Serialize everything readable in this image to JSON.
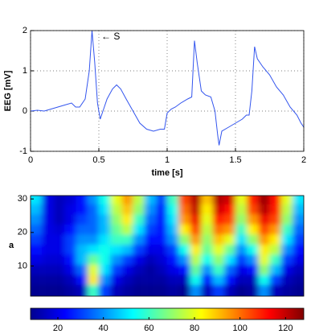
{
  "chart_data": [
    {
      "type": "line",
      "ylabel": "EEG [mV]",
      "xlabel": "time [s]",
      "annotation": "← S",
      "color": "#3355ee",
      "x": [
        0,
        0.05,
        0.1,
        0.15,
        0.2,
        0.25,
        0.3,
        0.33,
        0.36,
        0.4,
        0.43,
        0.45,
        0.47,
        0.49,
        0.51,
        0.53,
        0.56,
        0.6,
        0.63,
        0.66,
        0.7,
        0.75,
        0.8,
        0.85,
        0.9,
        0.95,
        0.98,
        1.0,
        1.03,
        1.06,
        1.1,
        1.15,
        1.18,
        1.2,
        1.22,
        1.25,
        1.28,
        1.32,
        1.35,
        1.37,
        1.38,
        1.4,
        1.45,
        1.5,
        1.55,
        1.58,
        1.6,
        1.62,
        1.64,
        1.66,
        1.7,
        1.75,
        1.8,
        1.85,
        1.9,
        1.95,
        1.98,
        2.0
      ],
      "values": [
        0,
        0.02,
        0,
        0.05,
        0.1,
        0.15,
        0.2,
        0.1,
        0.1,
        0.3,
        1.0,
        2.0,
        1.2,
        0.2,
        -0.2,
        0,
        0.3,
        0.55,
        0.65,
        0.55,
        0.3,
        0,
        -0.3,
        -0.45,
        -0.5,
        -0.45,
        -0.45,
        -0.05,
        0.05,
        0.1,
        0.2,
        0.3,
        0.35,
        1.75,
        1.2,
        0.5,
        0.4,
        0.35,
        0,
        -0.6,
        -0.85,
        -0.5,
        -0.4,
        -0.3,
        -0.2,
        -0.1,
        -0.1,
        0.5,
        1.6,
        1.3,
        1.1,
        0.9,
        0.6,
        0.4,
        0.1,
        -0.1,
        -0.3,
        -0.4
      ],
      "xlim": [
        0,
        2
      ],
      "ylim": [
        -1,
        2
      ],
      "xticks": [
        0,
        0.5,
        1,
        1.5,
        2
      ],
      "yticks": [
        -1,
        0,
        1,
        2
      ],
      "grid": true
    },
    {
      "type": "heatmap",
      "ylabel": "a",
      "xlim": [
        0,
        2
      ],
      "ylim": [
        1,
        31
      ],
      "yticks": [
        10,
        20,
        30
      ],
      "x": [
        0.04,
        0.125,
        0.21,
        0.29,
        0.375,
        0.46,
        0.54,
        0.625,
        0.71,
        0.79,
        0.875,
        0.96,
        1.04,
        1.125,
        1.21,
        1.29,
        1.375,
        1.46,
        1.54,
        1.625,
        1.71,
        1.79,
        1.875,
        1.96
      ],
      "y": [
        3,
        6,
        9,
        12,
        15,
        18,
        21,
        24,
        27,
        30
      ],
      "z": [
        [
          10,
          10,
          10,
          12,
          15,
          60,
          30,
          15,
          12,
          10,
          10,
          10,
          12,
          10,
          40,
          15,
          30,
          15,
          10,
          12,
          40,
          15,
          12,
          10
        ],
        [
          12,
          12,
          12,
          15,
          25,
          85,
          40,
          20,
          15,
          12,
          12,
          12,
          15,
          15,
          55,
          25,
          45,
          25,
          15,
          15,
          55,
          30,
          15,
          12
        ],
        [
          15,
          15,
          15,
          20,
          35,
          80,
          50,
          30,
          20,
          15,
          12,
          15,
          20,
          25,
          65,
          40,
          60,
          35,
          20,
          25,
          70,
          45,
          20,
          15
        ],
        [
          20,
          18,
          18,
          25,
          45,
          65,
          55,
          40,
          30,
          20,
          15,
          18,
          25,
          40,
          75,
          55,
          70,
          50,
          30,
          40,
          80,
          60,
          30,
          20
        ],
        [
          25,
          20,
          20,
          30,
          45,
          50,
          55,
          50,
          45,
          30,
          20,
          20,
          30,
          55,
          85,
          65,
          80,
          65,
          40,
          55,
          85,
          75,
          40,
          25
        ],
        [
          30,
          20,
          20,
          30,
          40,
          40,
          50,
          60,
          60,
          40,
          25,
          25,
          40,
          70,
          95,
          70,
          90,
          80,
          50,
          70,
          95,
          85,
          50,
          30
        ],
        [
          35,
          20,
          18,
          25,
          35,
          35,
          45,
          65,
          75,
          50,
          30,
          25,
          45,
          85,
          105,
          75,
          100,
          95,
          60,
          85,
          105,
          95,
          60,
          35
        ],
        [
          40,
          20,
          15,
          20,
          30,
          35,
          45,
          70,
          85,
          60,
          35,
          25,
          50,
          95,
          115,
          80,
          110,
          105,
          70,
          95,
          115,
          105,
          70,
          40
        ],
        [
          45,
          20,
          15,
          20,
          25,
          35,
          50,
          75,
          90,
          70,
          40,
          25,
          55,
          100,
          120,
          85,
          118,
          112,
          75,
          105,
          122,
          110,
          75,
          45
        ],
        [
          50,
          20,
          15,
          18,
          25,
          40,
          55,
          80,
          95,
          75,
          45,
          30,
          60,
          105,
          122,
          90,
          122,
          118,
          80,
          110,
          125,
          112,
          80,
          50
        ]
      ],
      "colormap": "jet",
      "clim": [
        8,
        128
      ],
      "cticks": [
        20,
        40,
        60,
        80,
        100,
        120
      ]
    }
  ]
}
